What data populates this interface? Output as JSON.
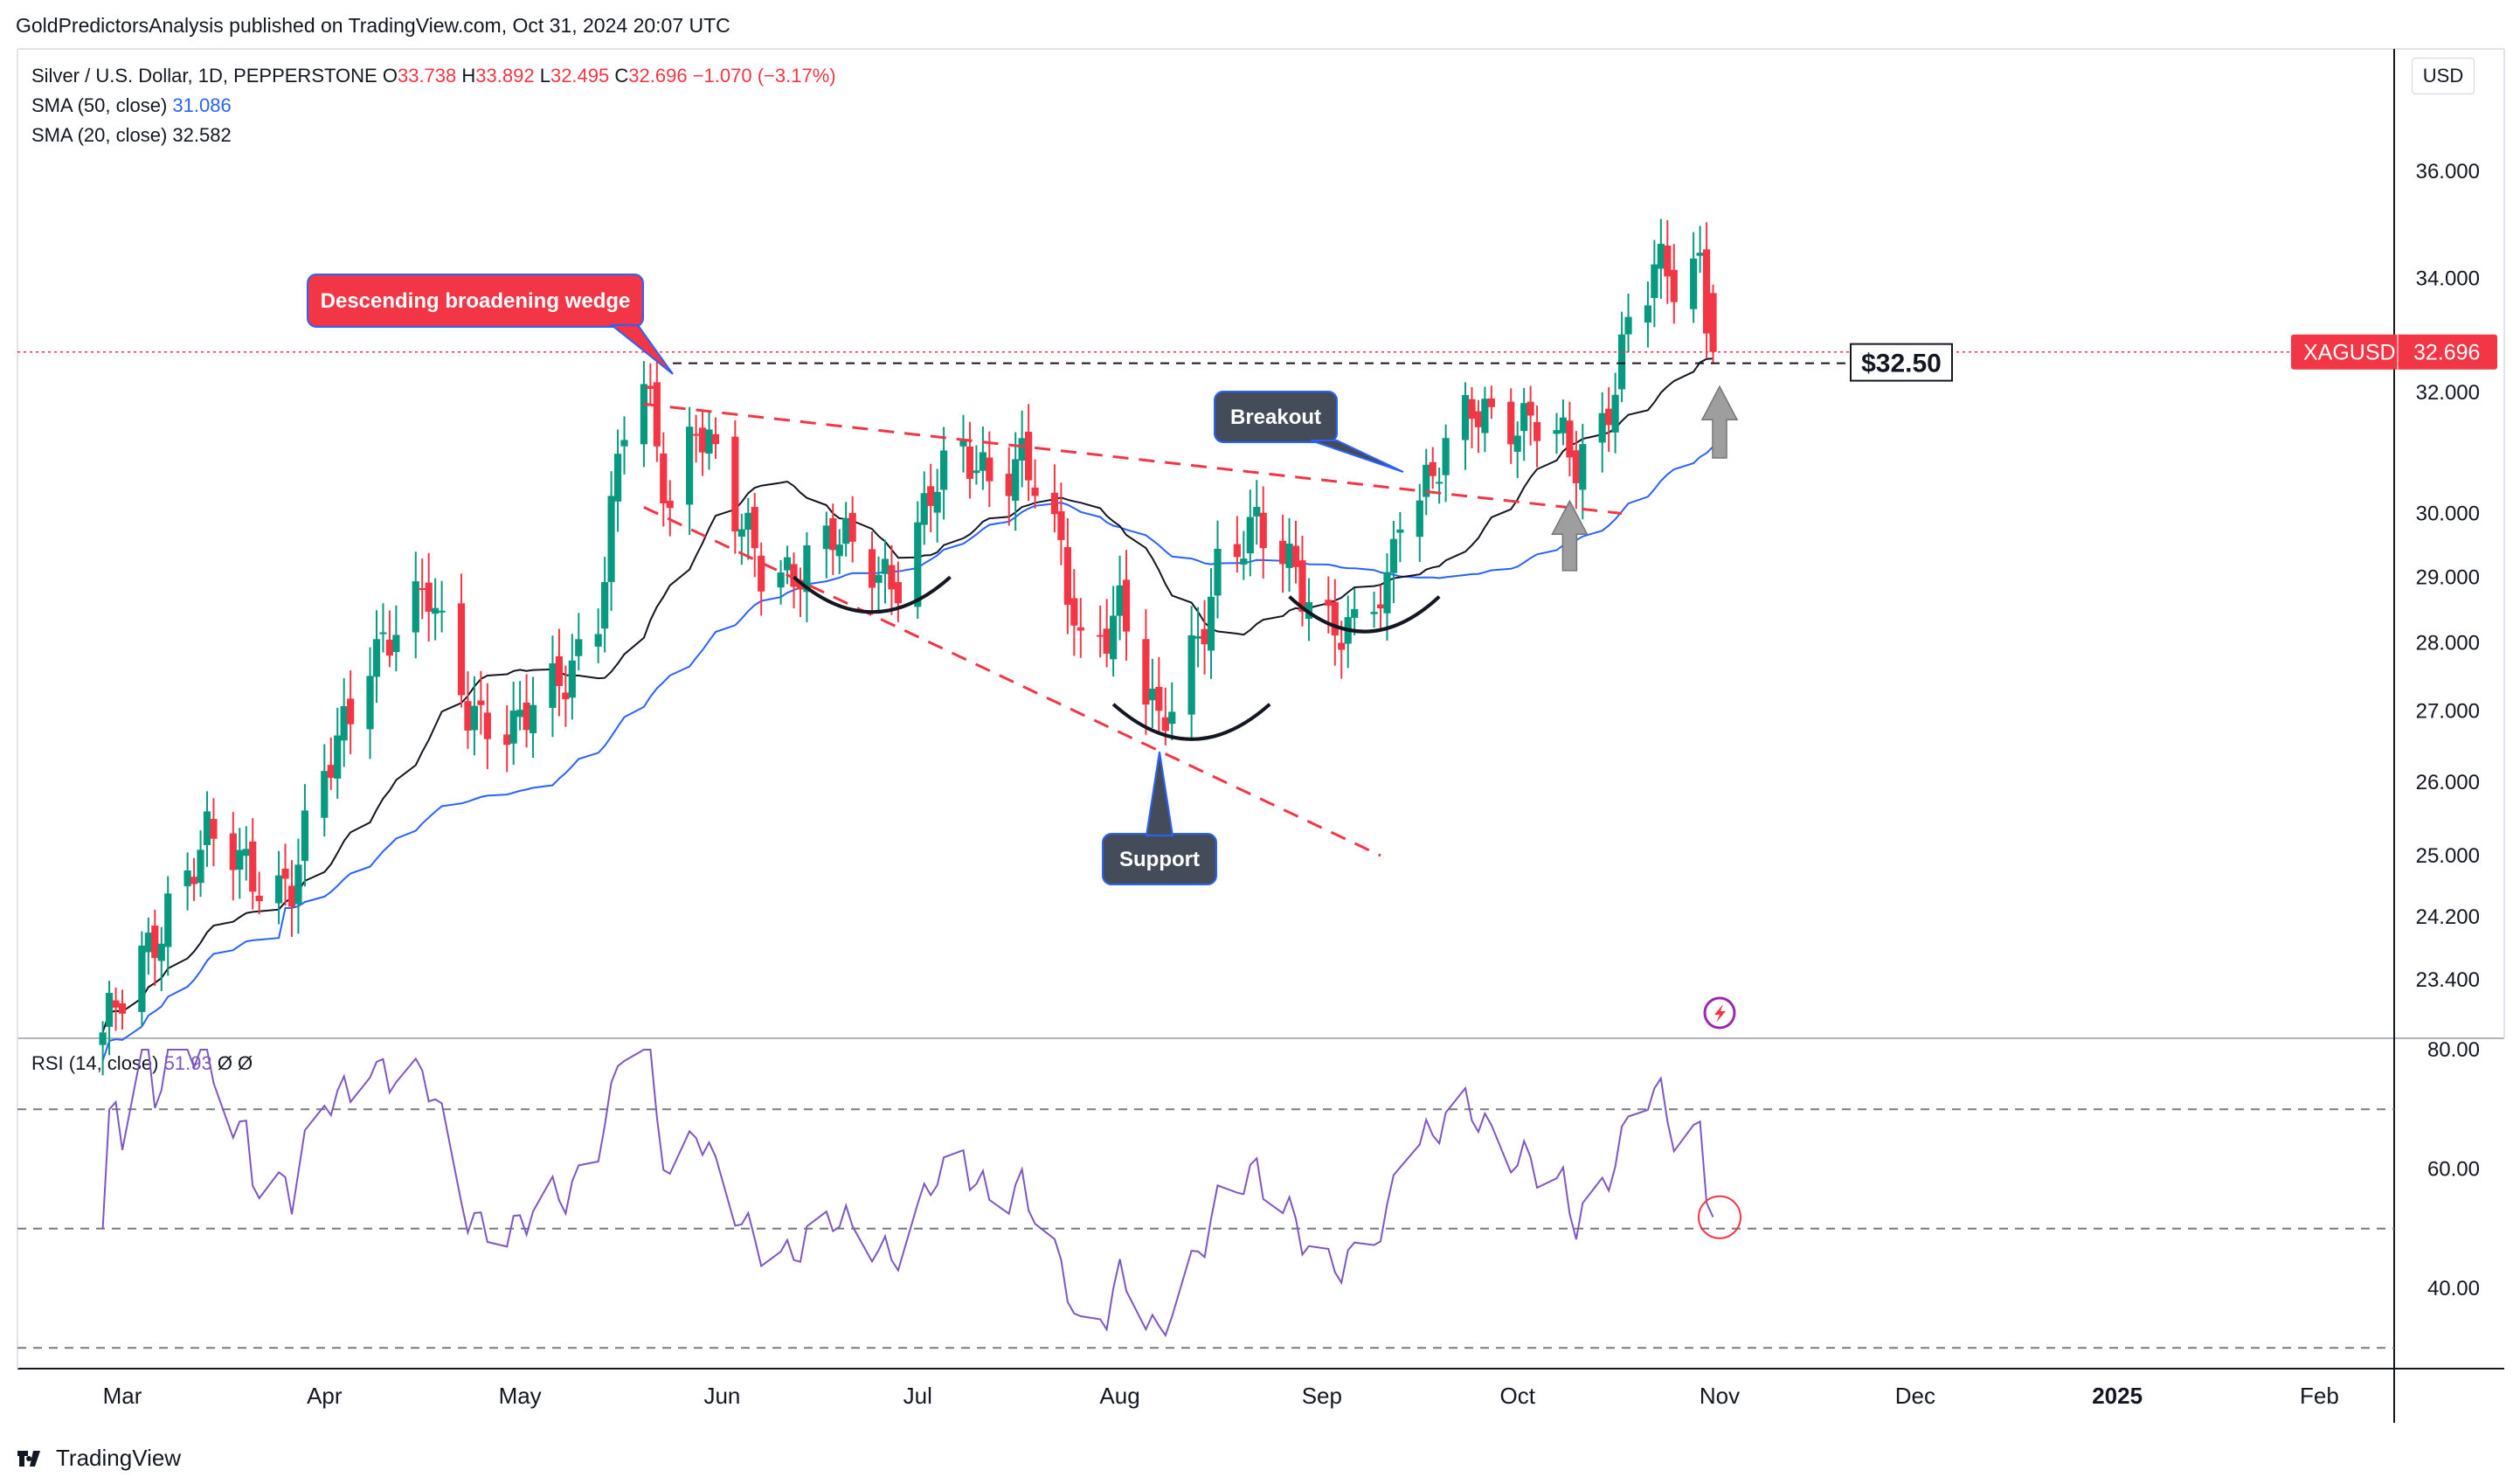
{
  "header": {
    "published": "GoldPredictorsAnalysis published on TradingView.com, Oct 31, 2024 20:07 UTC"
  },
  "legend": {
    "symbol": "Silver / U.S. Dollar, 1D, PEPPERSTONE",
    "o_label": "O",
    "o": "33.738",
    "h_label": "H",
    "h": "33.892",
    "l_label": "L",
    "l": "32.495",
    "c_label": "C",
    "c": "32.696",
    "change": "−1.070 (−3.17%)",
    "sma50_label": "SMA (50, close)",
    "sma50": "31.086",
    "sma20_label": "SMA (20, close)",
    "sma20": "32.582"
  },
  "rsi_legend": {
    "label": "RSI (14, close)",
    "value": "51.93",
    "extra": "Ø  Ø"
  },
  "currency": "USD",
  "price_label": {
    "symbol": "XAGUSD",
    "value": "32.696"
  },
  "level_label": "$32.50",
  "annotations": {
    "wedge": "Descending broadening wedge",
    "breakout": "Breakout",
    "support": "Support"
  },
  "footer": {
    "brand": "TradingView"
  },
  "colors": {
    "up": "#089981",
    "down": "#f23645",
    "sma50": "#2962ff",
    "sma20": "#131722",
    "rsi": "#7e57c2",
    "wedge": "#f23645"
  },
  "chart_data": {
    "type": "candlestick",
    "y_axis_ticks": [
      "36.000",
      "34.000",
      "32.000",
      "30.000",
      "29.000",
      "28.000",
      "27.000",
      "26.000",
      "25.000",
      "24.200",
      "23.400"
    ],
    "y_log_scale": true,
    "rsi_axis_ticks": [
      "80.00",
      "60.00",
      "40.00"
    ],
    "x_axis_ticks": [
      "Mar",
      "Apr",
      "May",
      "Jun",
      "Jul",
      "Aug",
      "Sep",
      "Oct",
      "Nov",
      "Dec",
      "2025",
      "Feb"
    ],
    "close_path": [
      [
        "2024-02-27",
        22.6
      ],
      [
        "2024-03-04",
        23.7
      ],
      [
        "2024-03-08",
        24.4
      ],
      [
        "2024-03-14",
        25.1
      ],
      [
        "2024-03-20",
        24.9
      ],
      [
        "2024-03-27",
        24.6
      ],
      [
        "2024-04-02",
        26.2
      ],
      [
        "2024-04-08",
        28.0
      ],
      [
        "2024-04-12",
        28.2
      ],
      [
        "2024-04-17",
        28.6
      ],
      [
        "2024-04-23",
        27.2
      ],
      [
        "2024-04-30",
        26.6
      ],
      [
        "2024-05-06",
        27.3
      ],
      [
        "2024-05-13",
        28.5
      ],
      [
        "2024-05-17",
        31.3
      ],
      [
        "2024-05-20",
        32.0
      ],
      [
        "2024-05-24",
        30.2
      ],
      [
        "2024-05-28",
        31.7
      ],
      [
        "2024-06-03",
        29.8
      ],
      [
        "2024-06-07",
        29.2
      ],
      [
        "2024-06-12",
        29.2
      ],
      [
        "2024-06-18",
        29.5
      ],
      [
        "2024-06-24",
        29.2
      ],
      [
        "2024-06-28",
        29.1
      ],
      [
        "2024-07-03",
        30.2
      ],
      [
        "2024-07-08",
        30.9
      ],
      [
        "2024-07-12",
        30.8
      ],
      [
        "2024-07-17",
        30.9
      ],
      [
        "2024-07-23",
        29.2
      ],
      [
        "2024-07-26",
        28.0
      ],
      [
        "2024-08-01",
        28.6
      ],
      [
        "2024-08-05",
        27.2
      ],
      [
        "2024-08-07",
        26.6
      ],
      [
        "2024-08-12",
        27.9
      ],
      [
        "2024-08-16",
        29.2
      ],
      [
        "2024-08-22",
        29.6
      ],
      [
        "2024-08-28",
        29.2
      ],
      [
        "2024-09-03",
        28.2
      ],
      [
        "2024-09-06",
        28.0
      ],
      [
        "2024-09-11",
        28.8
      ],
      [
        "2024-09-13",
        30.3
      ],
      [
        "2024-09-18",
        30.7
      ],
      [
        "2024-09-24",
        31.5
      ],
      [
        "2024-09-27",
        31.6
      ],
      [
        "2024-10-03",
        31.7
      ],
      [
        "2024-10-07",
        31.2
      ],
      [
        "2024-10-10",
        30.6
      ],
      [
        "2024-10-14",
        31.4
      ],
      [
        "2024-10-18",
        33.4
      ],
      [
        "2024-10-22",
        34.2
      ],
      [
        "2024-10-25",
        33.7
      ],
      [
        "2024-10-29",
        34.1
      ],
      [
        "2024-10-31",
        32.696
      ]
    ],
    "sma50_last": 31.086,
    "sma20_last": 32.582,
    "horizontal_level": 32.5,
    "rsi_last": 51.93,
    "rsi_levels": [
      70,
      50,
      30
    ]
  }
}
